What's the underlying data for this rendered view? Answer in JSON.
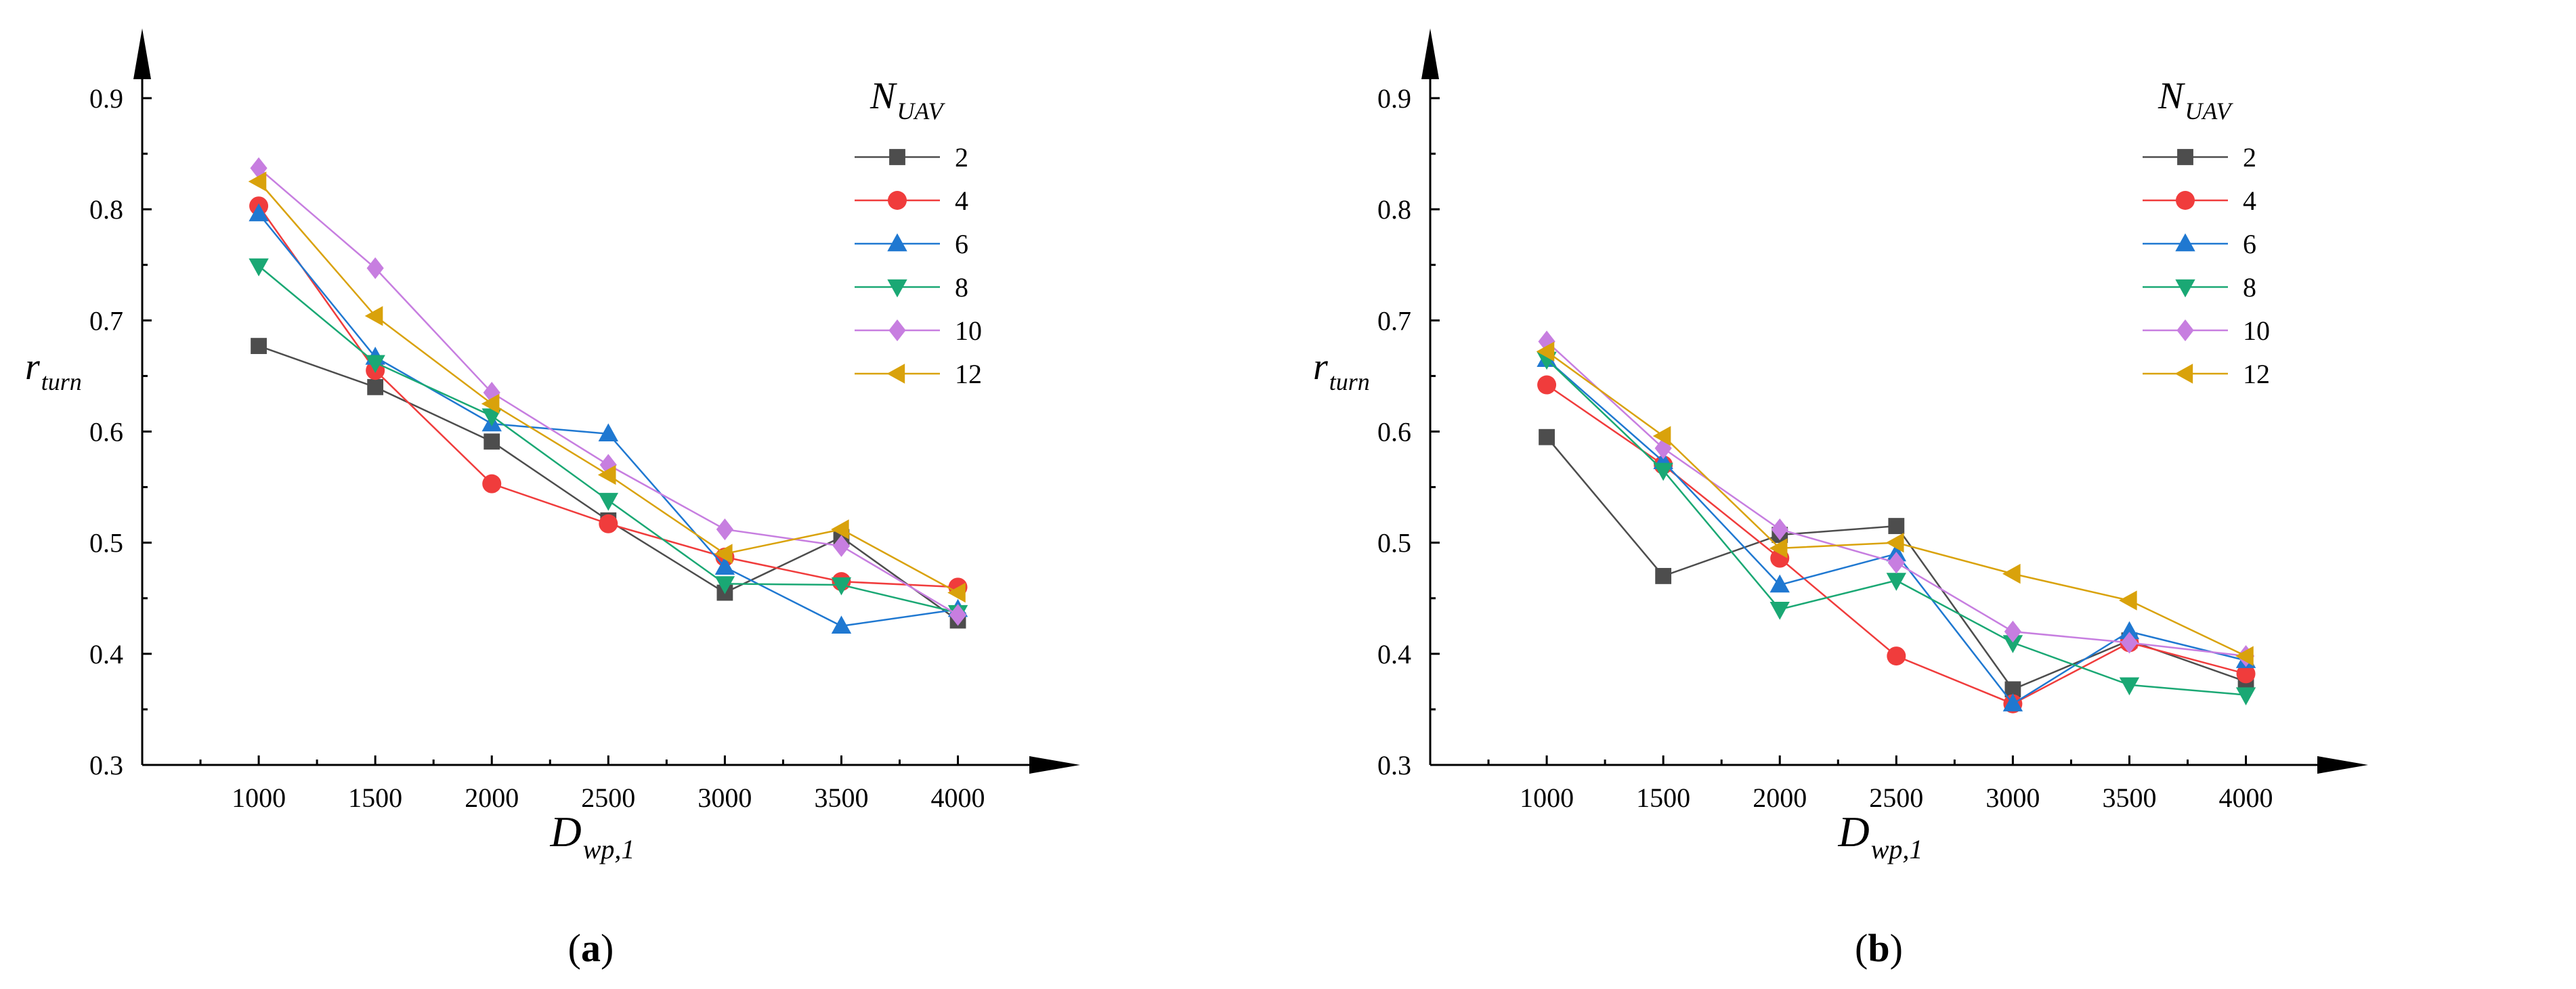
{
  "figure": {
    "panels": [
      {
        "label_open": "(",
        "label_letter": "a",
        "label_close": ")"
      },
      {
        "label_open": "(",
        "label_letter": "b",
        "label_close": ")"
      }
    ]
  },
  "chart_data": [
    {
      "type": "line",
      "panel": "a",
      "x": [
        1000,
        1500,
        2000,
        2500,
        3000,
        3500,
        4000
      ],
      "xlim": [
        500,
        4350
      ],
      "ylim": [
        0.3,
        0.9
      ],
      "xticks": [
        "1000",
        "1500",
        "2000",
        "2500",
        "3000",
        "3500",
        "4000"
      ],
      "yticks": [
        "0.3",
        "0.4",
        "0.5",
        "0.6",
        "0.7",
        "0.8",
        "0.9"
      ],
      "xlabel": {
        "main": "D",
        "sub": "wp,1"
      },
      "ylabel": {
        "main": "r",
        "sub": "turn"
      },
      "legend_title": {
        "main": "N",
        "sub": "UAV"
      },
      "legend_position": "top-right",
      "series": [
        {
          "name": "2",
          "color": "#4d4d4d",
          "marker": "square",
          "values": [
            0.677,
            0.64,
            0.591,
            0.52,
            0.455,
            0.505,
            0.43
          ]
        },
        {
          "name": "4",
          "color": "#f03c3c",
          "marker": "circle",
          "values": [
            0.803,
            0.655,
            0.553,
            0.517,
            0.487,
            0.465,
            0.46
          ]
        },
        {
          "name": "6",
          "color": "#1f78d1",
          "marker": "triangle-up",
          "values": [
            0.796,
            0.667,
            0.607,
            0.598,
            0.478,
            0.425,
            0.44
          ]
        },
        {
          "name": "8",
          "color": "#1aa874",
          "marker": "triangle-down",
          "values": [
            0.749,
            0.662,
            0.614,
            0.538,
            0.463,
            0.462,
            0.437
          ]
        },
        {
          "name": "10",
          "color": "#c77ee0",
          "marker": "diamond",
          "values": [
            0.837,
            0.747,
            0.635,
            0.57,
            0.512,
            0.497,
            0.435
          ]
        },
        {
          "name": "12",
          "color": "#d9a20b",
          "marker": "triangle-left",
          "values": [
            0.825,
            0.704,
            0.625,
            0.561,
            0.49,
            0.512,
            0.455
          ]
        }
      ]
    },
    {
      "type": "line",
      "panel": "b",
      "x": [
        1000,
        1500,
        2000,
        2500,
        3000,
        3500,
        4000
      ],
      "xlim": [
        500,
        4350
      ],
      "ylim": [
        0.3,
        0.9
      ],
      "xticks": [
        "1000",
        "1500",
        "2000",
        "2500",
        "3000",
        "3500",
        "4000"
      ],
      "yticks": [
        "0.3",
        "0.4",
        "0.5",
        "0.6",
        "0.7",
        "0.8",
        "0.9"
      ],
      "xlabel": {
        "main": "D",
        "sub": "wp,1"
      },
      "ylabel": {
        "main": "r",
        "sub": "turn"
      },
      "legend_title": {
        "main": "N",
        "sub": "UAV"
      },
      "legend_position": "top-right",
      "series": [
        {
          "name": "2",
          "color": "#4d4d4d",
          "marker": "square",
          "values": [
            0.595,
            0.47,
            0.507,
            0.515,
            0.368,
            0.412,
            0.375
          ]
        },
        {
          "name": "4",
          "color": "#f03c3c",
          "marker": "circle",
          "values": [
            0.642,
            0.57,
            0.486,
            0.398,
            0.355,
            0.41,
            0.382
          ]
        },
        {
          "name": "6",
          "color": "#1f78d1",
          "marker": "triangle-up",
          "values": [
            0.665,
            0.573,
            0.462,
            0.49,
            0.355,
            0.42,
            0.394
          ]
        },
        {
          "name": "8",
          "color": "#1aa874",
          "marker": "triangle-down",
          "values": [
            0.665,
            0.565,
            0.44,
            0.466,
            0.41,
            0.372,
            0.363
          ]
        },
        {
          "name": "10",
          "color": "#c77ee0",
          "marker": "diamond",
          "values": [
            0.681,
            0.585,
            0.512,
            0.482,
            0.42,
            0.41,
            0.398
          ]
        },
        {
          "name": "12",
          "color": "#d9a20b",
          "marker": "triangle-left",
          "values": [
            0.672,
            0.596,
            0.495,
            0.5,
            0.472,
            0.448,
            0.398
          ]
        }
      ]
    }
  ]
}
